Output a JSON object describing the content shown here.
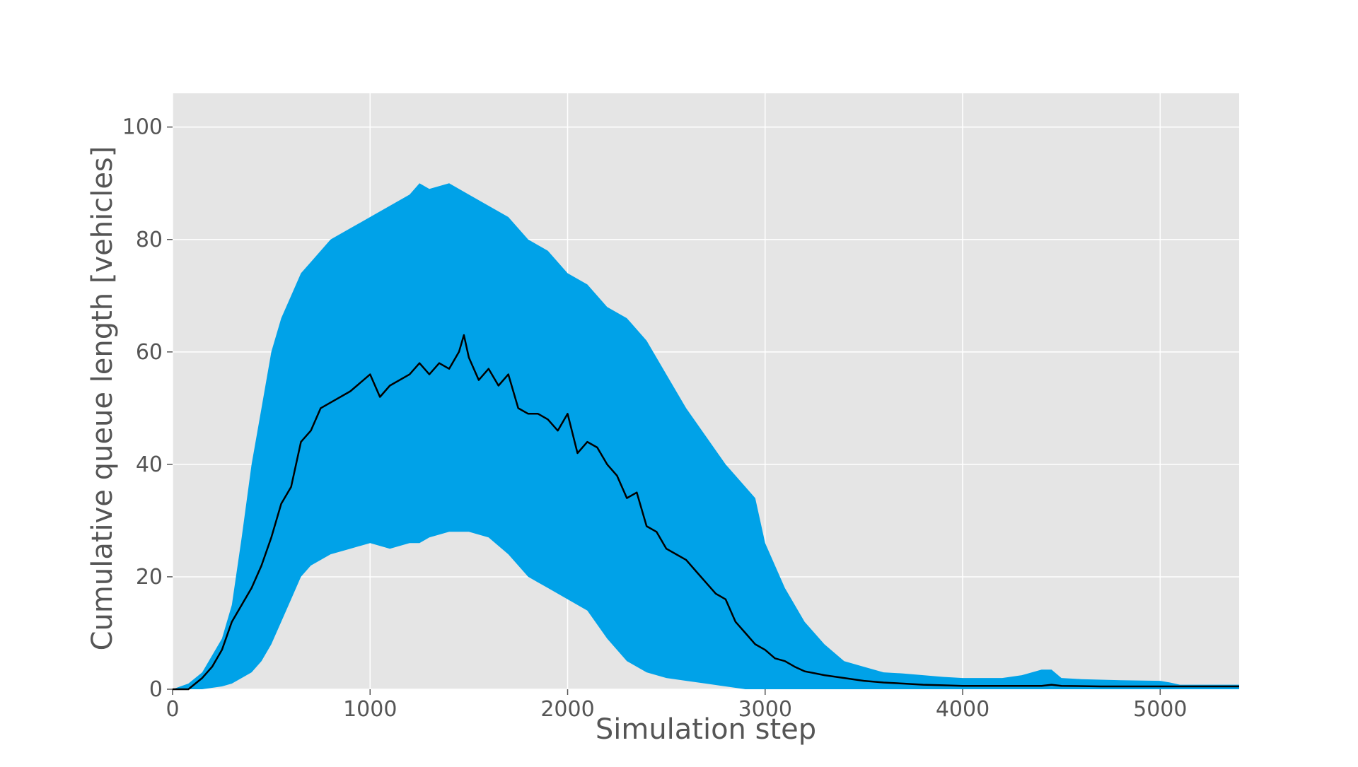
{
  "chart_data": {
    "type": "area",
    "xlabel": "Simulation step",
    "ylabel": "Cumulative queue length [vehicles]",
    "xlim": [
      0,
      5400
    ],
    "ylim": [
      0,
      106
    ],
    "xticks": [
      0,
      1000,
      2000,
      3000,
      4000,
      5000
    ],
    "yticks": [
      0,
      20,
      40,
      60,
      80,
      100
    ],
    "grid": true,
    "colors": {
      "background": "#e5e5e5",
      "band": "#00a2e8",
      "mean": "#000000",
      "grid": "#ffffff",
      "text": "#555555"
    },
    "band": {
      "x": [
        0,
        80,
        150,
        250,
        300,
        350,
        400,
        450,
        500,
        550,
        600,
        650,
        700,
        800,
        900,
        1000,
        1100,
        1200,
        1250,
        1300,
        1400,
        1500,
        1600,
        1700,
        1800,
        1900,
        2000,
        2100,
        2200,
        2300,
        2400,
        2500,
        2600,
        2700,
        2800,
        2900,
        2950,
        3000,
        3100,
        3200,
        3300,
        3400,
        3500,
        3600,
        3700,
        3800,
        3900,
        4000,
        4100,
        4200,
        4300,
        4400,
        4450,
        4500,
        4600,
        4800,
        5000,
        5050,
        5100,
        5400
      ],
      "upper": [
        0,
        1,
        3,
        9,
        15,
        27,
        40,
        50,
        60,
        66,
        70,
        74,
        76,
        80,
        82,
        84,
        86,
        88,
        90,
        89,
        90,
        88,
        86,
        84,
        80,
        78,
        74,
        72,
        68,
        66,
        62,
        56,
        50,
        45,
        40,
        36,
        34,
        26,
        18,
        12,
        8,
        5,
        4,
        3,
        2.8,
        2.5,
        2.2,
        2,
        2,
        2,
        2.5,
        3.5,
        3.5,
        2,
        1.8,
        1.6,
        1.5,
        1.2,
        0.8,
        0.8
      ],
      "lower": [
        0,
        0,
        0,
        0.5,
        1,
        2,
        3,
        5,
        8,
        12,
        16,
        20,
        22,
        24,
        25,
        26,
        25,
        26,
        26,
        27,
        28,
        28,
        27,
        24,
        20,
        18,
        16,
        14,
        9,
        5,
        3,
        2,
        1.5,
        1,
        0.5,
        0,
        0,
        0,
        0,
        0,
        0,
        0,
        0,
        0,
        0,
        0,
        0,
        0,
        0,
        0,
        0,
        0,
        0,
        0,
        0,
        0,
        0,
        0,
        0,
        0
      ]
    },
    "series": [
      {
        "x": [
          0,
          80,
          150,
          200,
          250,
          300,
          350,
          400,
          450,
          500,
          550,
          600,
          650,
          700,
          750,
          800,
          900,
          1000,
          1050,
          1100,
          1200,
          1250,
          1300,
          1350,
          1400,
          1450,
          1475,
          1500,
          1550,
          1600,
          1650,
          1700,
          1750,
          1800,
          1850,
          1900,
          1950,
          2000,
          2050,
          2100,
          2150,
          2200,
          2250,
          2300,
          2350,
          2400,
          2450,
          2500,
          2550,
          2600,
          2650,
          2700,
          2750,
          2800,
          2850,
          2900,
          2950,
          3000,
          3050,
          3100,
          3150,
          3200,
          3300,
          3400,
          3500,
          3600,
          3700,
          3800,
          3900,
          4000,
          4200,
          4400,
          4450,
          4500,
          4700,
          5000,
          5400
        ],
        "y": [
          0,
          0,
          2,
          4,
          7,
          12,
          15,
          18,
          22,
          27,
          33,
          36,
          44,
          46,
          50,
          51,
          53,
          56,
          52,
          54,
          56,
          58,
          56,
          58,
          57,
          60,
          63,
          59,
          55,
          57,
          54,
          56,
          50,
          49,
          49,
          48,
          46,
          49,
          42,
          44,
          43,
          40,
          38,
          34,
          35,
          29,
          28,
          25,
          24,
          23,
          21,
          19,
          17,
          16,
          12,
          10,
          8,
          7,
          5.5,
          5,
          4,
          3.2,
          2.5,
          2,
          1.5,
          1.2,
          1,
          0.8,
          0.7,
          0.6,
          0.6,
          0.6,
          0.8,
          0.6,
          0.5,
          0.5,
          0.5
        ]
      }
    ]
  }
}
